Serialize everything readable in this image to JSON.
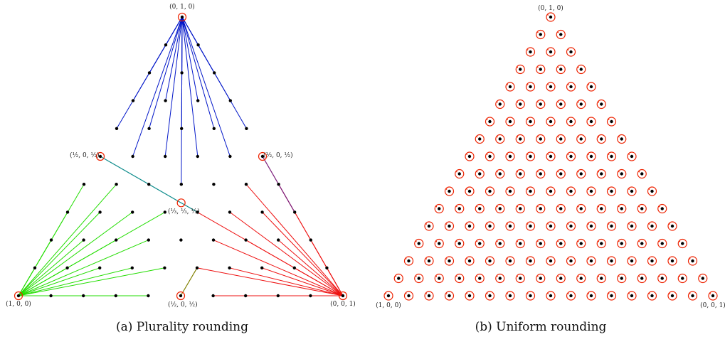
{
  "panel_a": {
    "caption": "(a) Plurality rounding",
    "vertex_labels": {
      "top": "(0, 1, 0)",
      "left": "(1, 0, 0)",
      "right": "(0, 0, 1)"
    },
    "point_labels": {
      "left_mid": "(½, 0, ½)",
      "right_mid": "(½, 0, ½)",
      "center": "(⅓, ⅓, ⅓)",
      "bottom_mid": "(½, 0, ½)"
    }
  },
  "panel_b": {
    "caption": "(b) Uniform rounding",
    "vertex_labels": {
      "top": "(0, 1, 0)",
      "left": "(1, 0, 0)",
      "right": "(0, 0, 1)"
    }
  },
  "colors": {
    "dot": "#000000",
    "circle": "#ee2200",
    "blue": "#0015c8",
    "green": "#22dd00",
    "red": "#ee1111",
    "teal": "#0b8a8a",
    "purple": "#7a1a7a",
    "olive": "#808000"
  }
}
